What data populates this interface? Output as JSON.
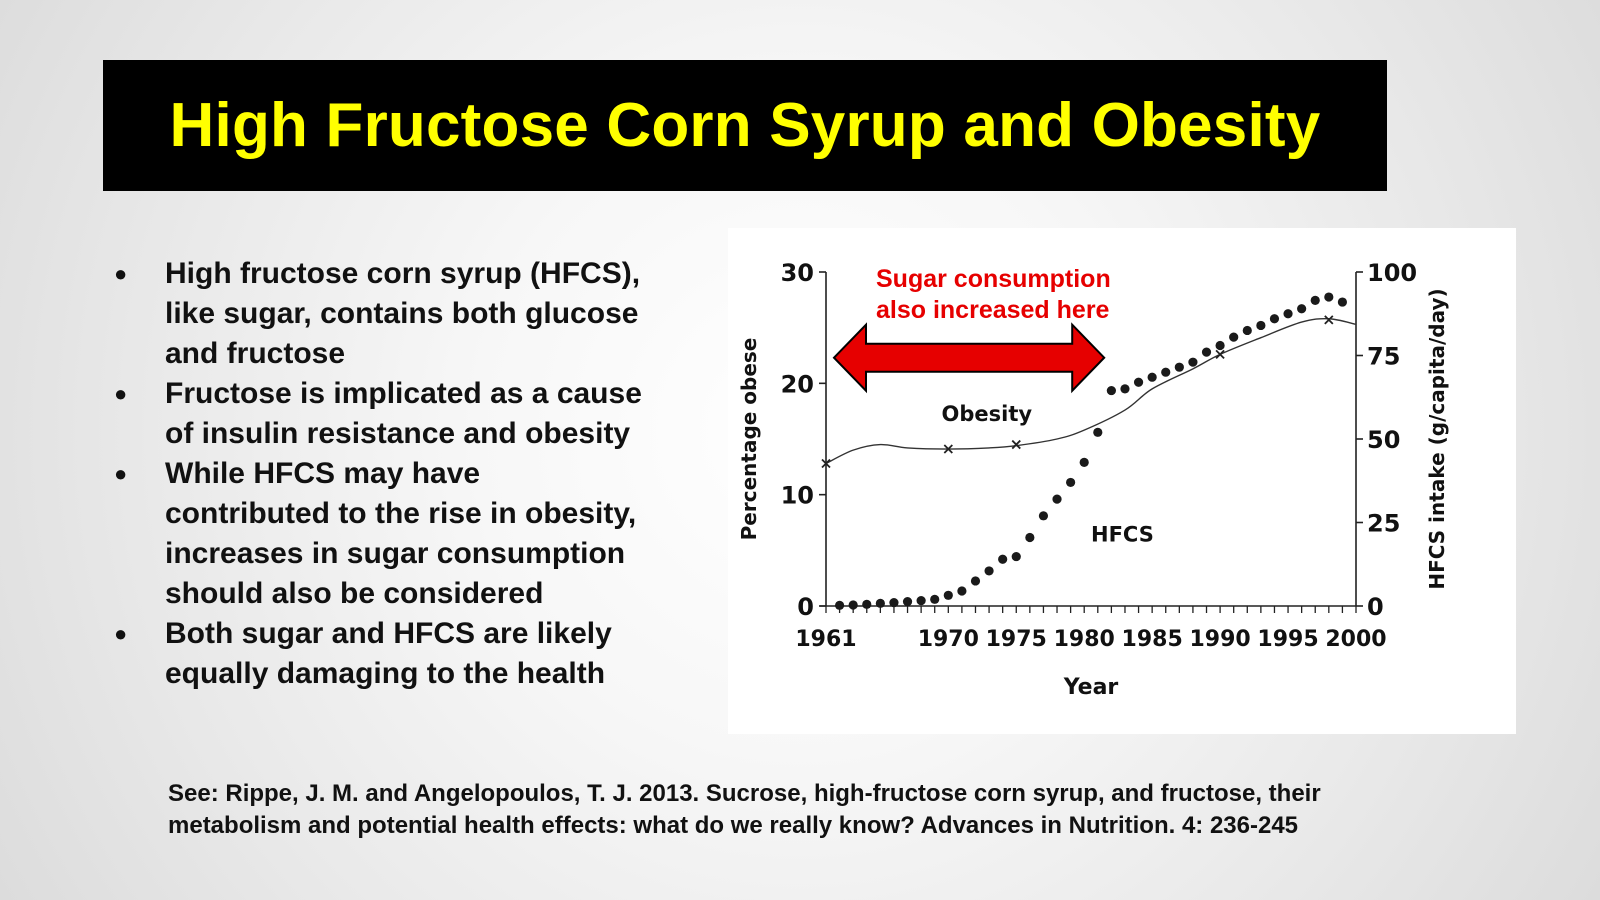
{
  "title": "High Fructose Corn Syrup and Obesity",
  "bullets": [
    {
      "lines": [
        "High fructose corn syrup (HFCS),",
        "like sugar, contains both glucose",
        "and fructose"
      ]
    },
    {
      "lines": [
        "Fructose is implicated as a cause",
        "of insulin resistance and obesity"
      ]
    },
    {
      "lines": [
        "While HFCS may have",
        "contributed to the rise in obesity,",
        "increases in sugar consumption",
        "should also be considered"
      ]
    },
    {
      "lines": [
        "Both sugar and HFCS are likely",
        "equally damaging to the health"
      ]
    }
  ],
  "annotation": {
    "line1": "Sugar consumption",
    "line2": "also increased here",
    "color": "#e60000"
  },
  "citation": {
    "line1": "See: Rippe, J. M. and Angelopoulos, T. J. 2013. Sucrose, high-fructose corn syrup, and fructose, their",
    "line2": "metabolism and potential health effects: what do we really know? Advances in Nutrition. 4: 236-245"
  },
  "chart_data": {
    "type": "line",
    "xlabel": "Year",
    "ylabel_left": "Percentage obese",
    "ylabel_right": "HFCS intake (g/capita/day)",
    "xlim": [
      1961,
      2000
    ],
    "ylim_left": [
      0,
      30
    ],
    "ylim_right": [
      0,
      100
    ],
    "x_ticks": [
      "1961",
      "1970",
      "1975",
      "1980",
      "1985",
      "1990",
      "1995",
      "2000"
    ],
    "y_ticks_left": [
      "0",
      "10",
      "20",
      "30"
    ],
    "y_ticks_right": [
      "0",
      "25",
      "50",
      "75",
      "100"
    ],
    "grid": false,
    "arrow_span": [
      1961,
      1980
    ],
    "series": [
      {
        "name": "Obesity",
        "axis": "left",
        "marker": "x",
        "markers": [
          [
            1961,
            12.8
          ],
          [
            1970,
            14.1
          ],
          [
            1975,
            14.5
          ],
          [
            1990,
            22.6
          ],
          [
            1998,
            25.7
          ]
        ],
        "curve": [
          [
            1961,
            12.8
          ],
          [
            1963,
            14.0
          ],
          [
            1965,
            14.5
          ],
          [
            1967,
            14.2
          ],
          [
            1970,
            14.1
          ],
          [
            1973,
            14.2
          ],
          [
            1975,
            14.4
          ],
          [
            1978,
            15.0
          ],
          [
            1980,
            15.8
          ],
          [
            1983,
            17.6
          ],
          [
            1985,
            19.5
          ],
          [
            1988,
            21.3
          ],
          [
            1990,
            22.6
          ],
          [
            1993,
            24.1
          ],
          [
            1996,
            25.5
          ],
          [
            1998,
            25.8
          ],
          [
            2000,
            25.3
          ]
        ]
      },
      {
        "name": "HFCS",
        "axis": "right",
        "marker": "dot",
        "points": [
          [
            1962,
            0.2
          ],
          [
            1963,
            0.3
          ],
          [
            1964,
            0.5
          ],
          [
            1965,
            0.8
          ],
          [
            1966,
            1.0
          ],
          [
            1967,
            1.3
          ],
          [
            1968,
            1.6
          ],
          [
            1969,
            2.0
          ],
          [
            1970,
            3.2
          ],
          [
            1971,
            4.5
          ],
          [
            1972,
            7.5
          ],
          [
            1973,
            10.5
          ],
          [
            1974,
            14.0
          ],
          [
            1975,
            14.8
          ],
          [
            1976,
            20.5
          ],
          [
            1977,
            27.0
          ],
          [
            1978,
            32.0
          ],
          [
            1979,
            37.0
          ],
          [
            1980,
            43.0
          ],
          [
            1981,
            52.0
          ],
          [
            1982,
            64.5
          ],
          [
            1983,
            65.0
          ],
          [
            1984,
            67.0
          ],
          [
            1985,
            68.5
          ],
          [
            1986,
            70.0
          ],
          [
            1987,
            71.5
          ],
          [
            1988,
            73.0
          ],
          [
            1989,
            76.0
          ],
          [
            1990,
            78.0
          ],
          [
            1991,
            80.5
          ],
          [
            1992,
            82.5
          ],
          [
            1993,
            84.0
          ],
          [
            1994,
            86.0
          ],
          [
            1995,
            87.5
          ],
          [
            1996,
            89.0
          ],
          [
            1997,
            91.5
          ],
          [
            1998,
            92.5
          ],
          [
            1999,
            91.0
          ]
        ]
      }
    ]
  }
}
